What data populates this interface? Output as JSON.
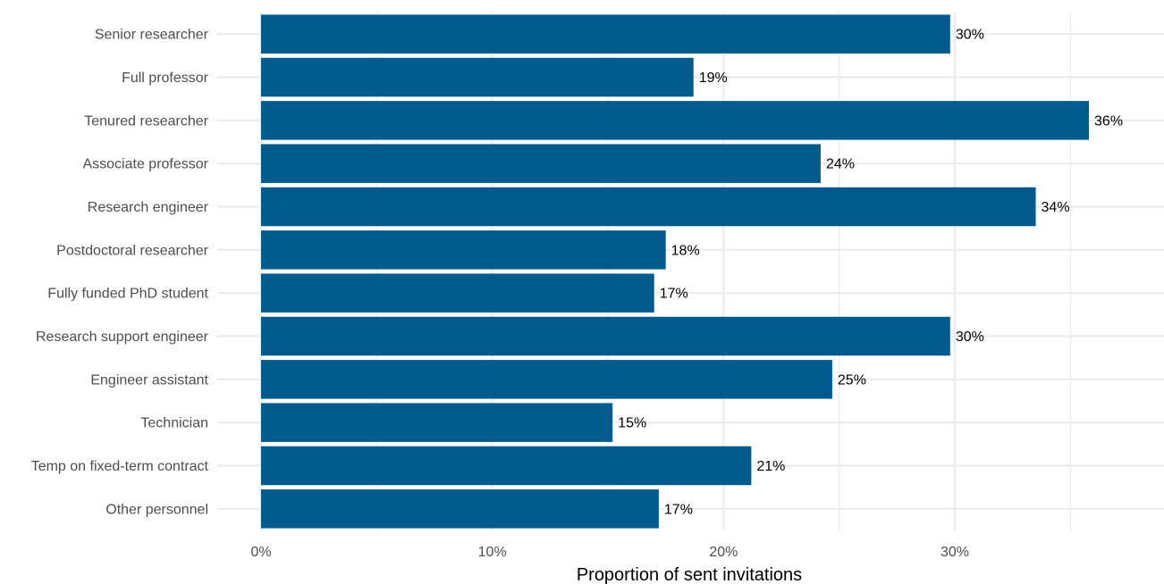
{
  "chart_data": {
    "type": "bar",
    "orientation": "horizontal",
    "categories": [
      "Senior researcher",
      "Full professor",
      "Tenured researcher",
      "Associate professor",
      "Research engineer",
      "Postdoctoral researcher",
      "Fully funded PhD student",
      "Research support engineer",
      "Engineer assistant",
      "Technician",
      "Temp on fixed-term contract",
      "Other personnel"
    ],
    "values": [
      0.298,
      0.187,
      0.358,
      0.242,
      0.335,
      0.175,
      0.17,
      0.298,
      0.247,
      0.152,
      0.212,
      0.172
    ],
    "data_labels": [
      "30%",
      "19%",
      "36%",
      "24%",
      "34%",
      "18%",
      "17%",
      "30%",
      "25%",
      "15%",
      "21%",
      "17%"
    ],
    "xlabel": "Proportion of sent invitations",
    "ylabel": "",
    "xlim": [
      0,
      0.38
    ],
    "x_ticks": [
      0,
      0.1,
      0.2,
      0.3
    ],
    "x_tick_labels": [
      "0%",
      "10%",
      "20%",
      "30%"
    ],
    "grid": true,
    "bar_color": "#025b8d",
    "grid_color": "#ebebeb"
  }
}
